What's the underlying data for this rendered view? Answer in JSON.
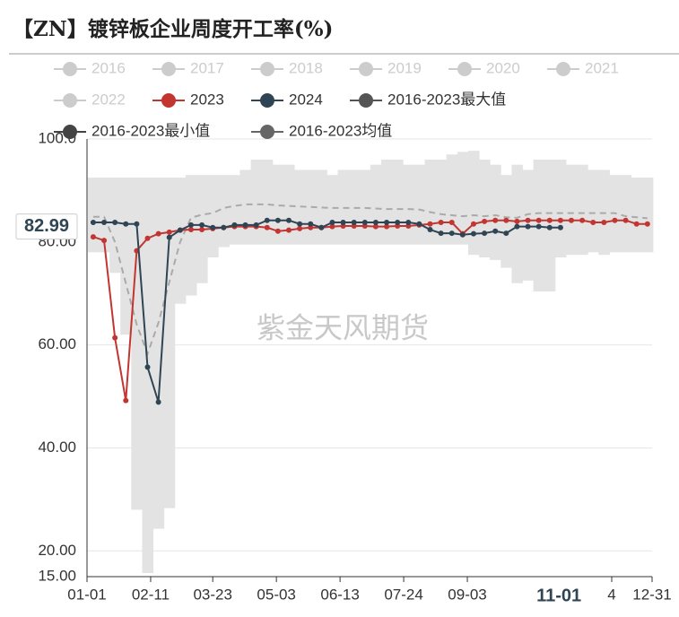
{
  "chart_data": {
    "type": "line",
    "title": "【ZN】镀锌板企业周度开工率(%)",
    "watermark": "紫金天风期货",
    "x": [
      4,
      11,
      18,
      25,
      32,
      39,
      46,
      53,
      60,
      67,
      74,
      81,
      88,
      95,
      102,
      109,
      116,
      123,
      130,
      137,
      144,
      151,
      158,
      165,
      172,
      179,
      186,
      193,
      200,
      207,
      214,
      221,
      228,
      235,
      242,
      249,
      256,
      263,
      270,
      277,
      284,
      291,
      298,
      305,
      312,
      319,
      326,
      333,
      340,
      347,
      354,
      361
    ],
    "xlim": [
      0,
      364
    ],
    "xticks": [
      {
        "value": 0,
        "label": "01-01"
      },
      {
        "value": 41,
        "label": "02-11"
      },
      {
        "value": 81,
        "label": "03-23"
      },
      {
        "value": 122,
        "label": "05-03"
      },
      {
        "value": 163,
        "label": "06-13"
      },
      {
        "value": 204,
        "label": "07-24"
      },
      {
        "value": 245,
        "label": "09-03"
      },
      {
        "value": 338,
        "label": "4"
      },
      {
        "value": 364,
        "label": "12-31"
      }
    ],
    "ylim": [
      15,
      100
    ],
    "yticks": [
      {
        "value": 15,
        "label": "15.00"
      },
      {
        "value": 20,
        "label": "20.00"
      },
      {
        "value": 40,
        "label": "40.00"
      },
      {
        "value": 60,
        "label": "60.00"
      },
      {
        "value": 80,
        "label": "80.00"
      },
      {
        "value": 100,
        "label": "100.0"
      }
    ],
    "grid": true,
    "pointer": {
      "x": 304,
      "x_label": "11-01",
      "y": 82.99
    },
    "hidden_legend": [
      "2016",
      "2017",
      "2018",
      "2019",
      "2020",
      "2021",
      "2022"
    ],
    "hidden_color": "#cccccc",
    "series": [
      {
        "name": "2023",
        "color": "#c23531",
        "style": "line",
        "values": [
          81.0,
          80.3,
          61.4,
          49.2,
          78.3,
          80.7,
          81.6,
          81.9,
          82.3,
          82.4,
          82.4,
          82.6,
          82.8,
          83.0,
          83.0,
          83.0,
          82.8,
          82.1,
          82.3,
          82.6,
          82.8,
          82.8,
          83.0,
          83.1,
          83.1,
          83.1,
          83.0,
          83.0,
          83.1,
          83.1,
          83.3,
          83.5,
          83.8,
          83.8,
          81.6,
          83.5,
          84.0,
          84.2,
          84.2,
          84.0,
          84.2,
          84.2,
          84.2,
          84.2,
          84.2,
          84.2,
          83.8,
          83.8,
          84.2,
          84.2,
          83.5,
          83.5
        ]
      },
      {
        "name": "2024",
        "color": "#2f4554",
        "style": "line",
        "values": [
          83.8,
          83.8,
          83.8,
          83.5,
          83.5,
          55.7,
          48.9,
          80.9,
          82.3,
          83.3,
          83.3,
          82.8,
          82.8,
          83.3,
          83.3,
          83.3,
          84.2,
          84.2,
          84.2,
          83.5,
          83.5,
          82.8,
          83.8,
          83.8,
          83.8,
          83.8,
          83.8,
          83.8,
          83.8,
          83.8,
          83.5,
          82.4,
          81.7,
          81.7,
          81.4,
          81.6,
          81.7,
          82.1,
          81.7,
          83.0,
          83.0,
          83.0,
          82.8,
          82.8,
          null,
          null,
          null,
          null,
          null,
          null,
          null,
          null
        ]
      },
      {
        "name": "2016-2023最大值",
        "color": "#e3e3e3",
        "legend_color": "#555555",
        "style": "band-top",
        "values": [
          92.5,
          92.5,
          92.5,
          92.5,
          92.5,
          92.5,
          92.5,
          92.5,
          92.5,
          93,
          93,
          93,
          93,
          93,
          94,
          96,
          96,
          95,
          95,
          94,
          94,
          94,
          93,
          94,
          94,
          94,
          95,
          96,
          96,
          95,
          95,
          96,
          96,
          97,
          97.5,
          97.7,
          96,
          95,
          93,
          95,
          94,
          96,
          96,
          96,
          95,
          95,
          94,
          94,
          93,
          93,
          92.5,
          92.5
        ]
      },
      {
        "name": "2016-2023最小值",
        "color": "#e3e3e3",
        "legend_color": "#444444",
        "style": "band-bottom",
        "values": [
          78.0,
          78.0,
          74,
          62,
          28,
          15.7,
          24.3,
          28.3,
          68,
          69.6,
          72,
          77,
          79,
          79.5,
          79.5,
          79.5,
          79.5,
          79.5,
          79.5,
          79.5,
          79.5,
          79.5,
          79.5,
          79.5,
          79.5,
          79.5,
          79.5,
          79.5,
          79.5,
          79.5,
          79.5,
          79.5,
          79.5,
          79.5,
          79.5,
          77.5,
          77,
          76.5,
          75,
          72,
          72.5,
          70.4,
          70.4,
          77,
          77.5,
          77.5,
          78,
          77.5,
          78,
          78,
          78,
          78
        ]
      },
      {
        "name": "2016-2023均值",
        "color": "#aaaaaa",
        "legend_color": "#666666",
        "style": "dashed",
        "values": [
          84.9,
          84.9,
          80.0,
          72.0,
          64.0,
          58.3,
          64.3,
          72.2,
          80.0,
          84.7,
          85.3,
          85.6,
          86.6,
          87.0,
          87.3,
          87.3,
          87.3,
          87.1,
          87.0,
          86.9,
          86.8,
          86.7,
          86.6,
          86.6,
          86.6,
          86.6,
          86.5,
          86.4,
          86.4,
          86.4,
          86.3,
          85.8,
          85.4,
          85.2,
          85.0,
          85.2,
          85.0,
          85.2,
          84.8,
          84.7,
          85.4,
          85.6,
          85.6,
          85.6,
          85.6,
          85.6,
          85.6,
          85.6,
          85.6,
          85.0,
          84.8,
          84.6
        ]
      }
    ]
  }
}
